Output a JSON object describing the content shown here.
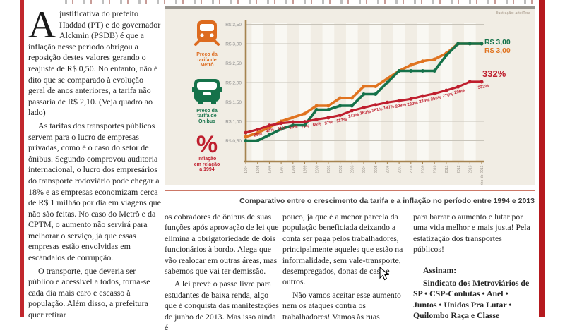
{
  "page": {
    "credit": "Ilustração: arte/Tera",
    "caption": "Comparativo entre o crescimento da tarifa e a inflação no período entre 1994 e 2013"
  },
  "article": {
    "drop_cap": "A",
    "col1": {
      "p1": "justificativa do prefeito Haddad (PT) e do governador Alckmin (PSDB) é que a inflação nesse período obrigou a reposição destes valores gerando o reajuste de R$ 0,50. No entanto, não é dito que se comparado à evolução geral de anos anteriores, a tarifa não passaria de R$ 2,10. (Veja quadro ao lado)",
      "p2": "As tarifas dos transportes públicos servem para o lucro de empresas privadas, como é o caso do setor de ônibus. Segundo comprovou auditoria internacional, o lucro dos empresários do transporte rodoviário pode chegar a 18% e as empresas economizam cerca de R$ 1 milhão por dia em viagens que não são feitas. No caso do Metrô e da CPTM, o aumento não servirá para melhorar o serviço, já que essas empresas estão envolvidas em escândalos de corrupção.",
      "p3": "O transporte, que deveria ser público e acessível a todos, torna-se cada dia mais caro e escasso à população. Além disso, a prefeitura quer retirar"
    },
    "col2": {
      "p1": "os cobradores de ônibus de suas funções após aprovação de lei que elimina a obrigatoriedade de dois funcionários à bordo. Alega que vão realocar em outras áreas, mas sabemos que vai ter demissão.",
      "p2": "A lei prevê o passe livre para estudantes de baixa renda, algo que é conquista das manifestações de junho de 2013. Mas isso ainda é"
    },
    "col3": {
      "p1": "pouco, já que é a menor parcela da população beneficiada deixando a conta ser paga pelos trabalhadores, principalmente aqueles que estão na informalidade, sem vale-transporte, desempregados, donas de casa e outros.",
      "p2": "Não vamos aceitar esse aumento nem os ataques contra os trabalhadores! Vamos às ruas"
    },
    "col4": {
      "p1": "para barrar o aumento e lutar por uma vida melhor e mais justa! Pela estatização dos transportes públicos!",
      "heading": "Assinam:",
      "signatories": "Sindicato dos Metroviários de SP • CSP-Conlutas • Anel • Juntos • Unidos Pra Lutar • Quilombo Raça e Classe"
    }
  },
  "legend": {
    "metro": {
      "icon": "metro-icon",
      "label": "Preço da\ntarifa de\nMetrô",
      "color": "#dd6b1f"
    },
    "bus": {
      "icon": "bus-icon",
      "label": "Preço da\ntarifa de\nÔnibus",
      "color": "#15724a"
    },
    "inflation": {
      "icon": "percent-icon",
      "glyph": "%",
      "label": "Inflação\nem relação\na 1994",
      "color": "#bf1f2e"
    }
  },
  "chart_data": {
    "type": "line",
    "title": "",
    "caption": "Comparativo entre o crescimento da tarifa e a inflação no período entre 1994 e 2013",
    "categories": [
      "1994",
      "1995",
      "1996",
      "1997",
      "1998",
      "1999",
      "2000",
      "2001",
      "2002",
      "2003",
      "2004",
      "2005",
      "2006",
      "2007",
      "2008",
      "2009",
      "2010",
      "2011",
      "2012",
      "2013",
      "junho de 2013"
    ],
    "series": [
      {
        "name": "Preço da tarifa de Metrô",
        "unit": "R$",
        "color": "#e0731f",
        "values": [
          0.6,
          0.7,
          0.85,
          1.0,
          1.1,
          1.2,
          1.4,
          1.4,
          1.6,
          1.6,
          1.9,
          1.9,
          2.1,
          2.3,
          2.45,
          2.55,
          2.6,
          2.75,
          3.0,
          3.0,
          3.0
        ]
      },
      {
        "name": "Preço da tarifa de Ônibus",
        "unit": "R$",
        "color": "#15724a",
        "values": [
          0.5,
          0.5,
          0.65,
          0.8,
          0.9,
          0.9,
          1.3,
          1.3,
          1.4,
          1.4,
          1.7,
          1.7,
          2.0,
          2.3,
          2.3,
          2.3,
          2.3,
          2.7,
          3.0,
          3.0,
          3.0
        ]
      },
      {
        "name": "Inflação em relação a 1994",
        "unit": "%",
        "color": "#bf1f2e",
        "values": [
          0,
          20,
          47,
          61,
          69,
          71,
          86,
          97,
          113,
          143,
          163,
          181,
          197,
          208,
          220,
          239,
          255,
          276,
          299,
          332,
          332
        ],
        "labels": [
          "",
          "20%",
          "47%",
          "61%",
          "69%",
          "71%",
          "86%",
          "97%",
          "113%",
          "143%",
          "163%",
          "181%",
          "197%",
          "208%",
          "220%",
          "239%",
          "255%",
          "276%",
          "299%",
          "",
          "332%"
        ]
      }
    ],
    "y_axis": {
      "ticks": [
        "R$ 3,50",
        "R$ 3,00",
        "R$ 2,50",
        "R$ 2,00",
        "R$ 1,50",
        "R$ 1,00",
        "R$ 0,50"
      ],
      "min": 0.5,
      "max": 3.5,
      "grid": true
    },
    "end_labels": [
      {
        "text": "R$ 3,00",
        "color": "#15724a"
      },
      {
        "text": "R$ 3,00",
        "color": "#e0731f"
      },
      {
        "text": "332%",
        "color": "#bf1f2e"
      }
    ],
    "legend_position": "left"
  }
}
